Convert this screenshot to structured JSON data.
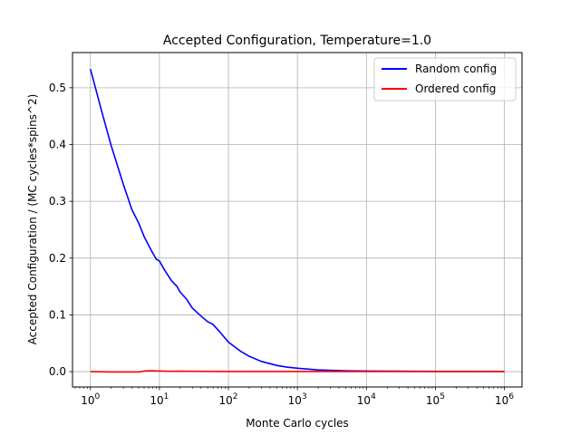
{
  "chart_data": {
    "type": "line",
    "title": "Accepted Configuration, Temperature=1.0",
    "xlabel": "Monte Carlo cycles",
    "ylabel": "Accepted Configuration / (MC cycles*spins^2)",
    "xscale": "log",
    "xlim": [
      0.55,
      1800000
    ],
    "ylim": [
      -0.027,
      0.562
    ],
    "x_ticks": [
      {
        "value": 1,
        "base": "10",
        "exp": "0"
      },
      {
        "value": 10,
        "base": "10",
        "exp": "1"
      },
      {
        "value": 100,
        "base": "10",
        "exp": "2"
      },
      {
        "value": 1000,
        "base": "10",
        "exp": "3"
      },
      {
        "value": 10000,
        "base": "10",
        "exp": "4"
      },
      {
        "value": 100000,
        "base": "10",
        "exp": "5"
      },
      {
        "value": 1000000,
        "base": "10",
        "exp": "6"
      }
    ],
    "y_ticks": [
      {
        "value": 0.0,
        "label": "0.0"
      },
      {
        "value": 0.1,
        "label": "0.1"
      },
      {
        "value": 0.2,
        "label": "0.2"
      },
      {
        "value": 0.3,
        "label": "0.3"
      },
      {
        "value": 0.4,
        "label": "0.4"
      },
      {
        "value": 0.5,
        "label": "0.5"
      }
    ],
    "grid": true,
    "legend_position": "top-right",
    "series": [
      {
        "name": "Random config",
        "color": "#0000ff",
        "x": [
          1,
          1.5,
          2,
          3,
          4,
          5,
          6,
          7,
          8,
          9,
          10,
          12,
          15,
          18,
          20,
          25,
          30,
          40,
          50,
          60,
          70,
          80,
          100,
          150,
          200,
          300,
          500,
          700,
          1000,
          2000,
          5000,
          10000,
          100000,
          1000000
        ],
        "y": [
          0.533,
          0.453,
          0.398,
          0.33,
          0.285,
          0.262,
          0.238,
          0.222,
          0.209,
          0.198,
          0.195,
          0.178,
          0.16,
          0.15,
          0.14,
          0.127,
          0.112,
          0.098,
          0.088,
          0.083,
          0.074,
          0.066,
          0.052,
          0.036,
          0.027,
          0.018,
          0.011,
          0.008,
          0.006,
          0.003,
          0.0015,
          0.001,
          0.0005,
          0.0002
        ]
      },
      {
        "name": "Ordered config",
        "color": "#ff0000",
        "x": [
          1,
          2,
          3,
          5,
          5.5,
          6,
          7,
          8,
          9,
          10,
          15,
          20,
          30,
          50,
          100,
          1000,
          10000,
          100000,
          1000000
        ],
        "y": [
          0.0,
          -0.0005,
          -0.0005,
          -0.0005,
          0.0,
          0.001,
          0.0015,
          0.0015,
          0.0012,
          0.001,
          0.0006,
          0.0008,
          0.0006,
          0.0005,
          0.0003,
          0.0003,
          0.0002,
          0.0002,
          0.0002
        ]
      }
    ]
  }
}
